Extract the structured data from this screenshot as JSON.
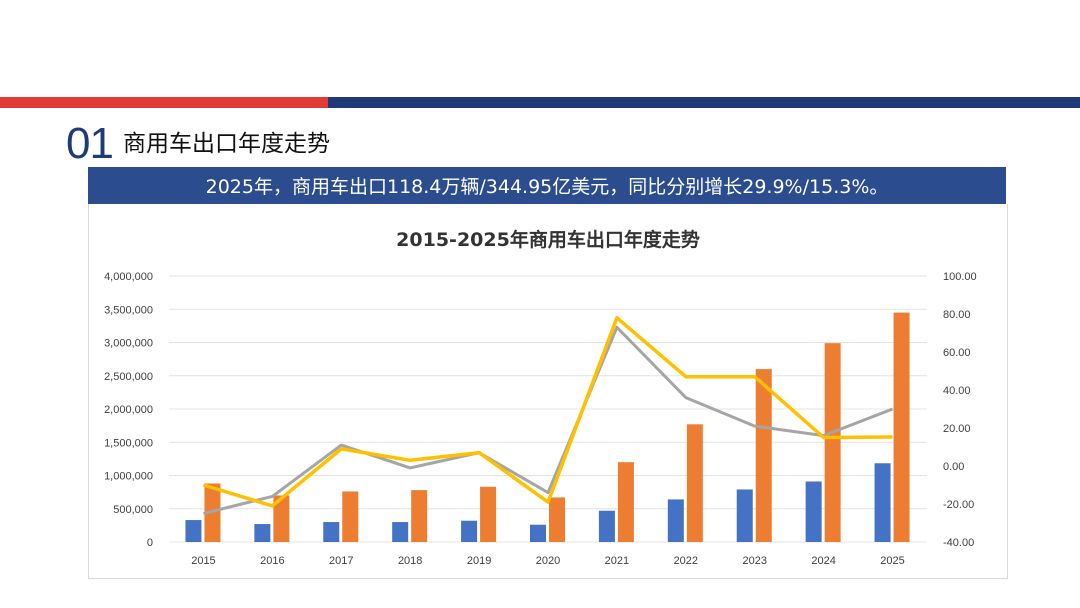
{
  "header": {
    "section_number": "01",
    "section_title": "商用车出口年度走势",
    "summary": "2025年，商用车出口118.4万辆/344.95亿美元，同比分别增长29.9%/15.3%。"
  },
  "colors": {
    "red_stripe": "#e03b36",
    "navy": "#1f3a78",
    "band": "#2b4d8f",
    "volume_bar": "#4472c4",
    "value_bar": "#ed7d31",
    "volume_growth_line": "#a5a5a5",
    "value_growth_line": "#ffc000"
  },
  "chart_data": {
    "type": "bar",
    "title": "2015-2025年商用车出口年度走势",
    "categories": [
      "2015",
      "2016",
      "2017",
      "2018",
      "2019",
      "2020",
      "2021",
      "2022",
      "2023",
      "2024",
      "2025"
    ],
    "series": [
      {
        "kind": "bar",
        "axis": "left",
        "color": "#4472c4",
        "values": [
          330000,
          270000,
          300000,
          300000,
          320000,
          260000,
          470000,
          640000,
          790000,
          910000,
          1184000
        ]
      },
      {
        "kind": "bar",
        "axis": "left",
        "color": "#ed7d31",
        "values": [
          880000,
          700000,
          760000,
          780000,
          830000,
          670000,
          1200000,
          1770000,
          2600000,
          2990000,
          3449500
        ]
      },
      {
        "kind": "line",
        "axis": "right",
        "color": "#a5a5a5",
        "values": [
          -25,
          -16,
          11,
          -1,
          7,
          -14,
          73,
          36,
          21,
          16,
          30
        ]
      },
      {
        "kind": "line",
        "axis": "right",
        "color": "#ffc000",
        "values": [
          -10,
          -21,
          9,
          3,
          7,
          -19,
          78,
          47,
          47,
          15,
          15.3
        ]
      }
    ],
    "y_left": {
      "min": 0,
      "max": 4000000,
      "step": 500000,
      "tick_labels": [
        "0",
        "500,000",
        "1,000,000",
        "1,500,000",
        "2,000,000",
        "2,500,000",
        "3,000,000",
        "3,500,000",
        "4,000,000"
      ]
    },
    "y_right": {
      "min": -40,
      "max": 100,
      "step": 20,
      "tick_labels": [
        "-40.00",
        "-20.00",
        "0.00",
        "20.00",
        "40.00",
        "60.00",
        "80.00",
        "100.00"
      ]
    },
    "grid": true
  }
}
